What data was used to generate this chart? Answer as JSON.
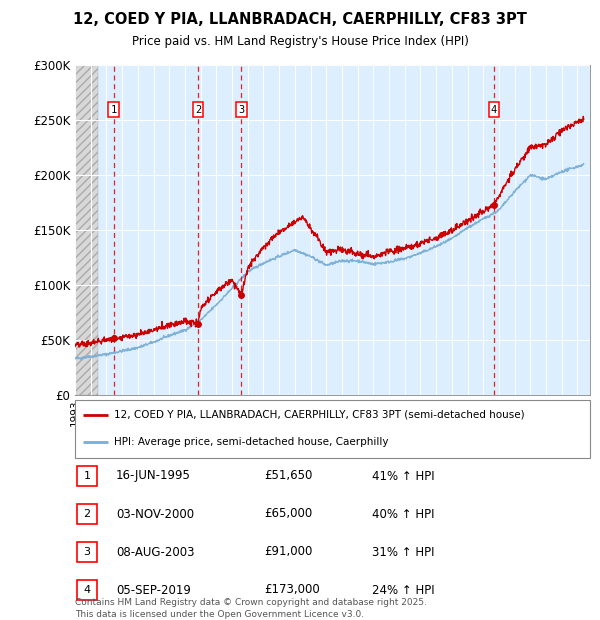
{
  "title": "12, COED Y PIA, LLANBRADACH, CAERPHILLY, CF83 3PT",
  "subtitle": "Price paid vs. HM Land Registry's House Price Index (HPI)",
  "ylim": [
    0,
    300000
  ],
  "yticks": [
    0,
    50000,
    100000,
    150000,
    200000,
    250000,
    300000
  ],
  "ytick_labels": [
    "£0",
    "£50K",
    "£100K",
    "£150K",
    "£200K",
    "£250K",
    "£300K"
  ],
  "xlim_start": 1993.0,
  "xlim_end": 2025.8,
  "hatch_end": 1994.45,
  "transactions": [
    {
      "num": 1,
      "date": "16-JUN-1995",
      "year": 1995.46,
      "price": 51650,
      "pct": "41%",
      "dir": "↑"
    },
    {
      "num": 2,
      "date": "03-NOV-2000",
      "year": 2000.84,
      "price": 65000,
      "pct": "40%",
      "dir": "↑"
    },
    {
      "num": 3,
      "date": "08-AUG-2003",
      "year": 2003.6,
      "price": 91000,
      "pct": "31%",
      "dir": "↑"
    },
    {
      "num": 4,
      "date": "05-SEP-2019",
      "year": 2019.68,
      "price": 173000,
      "pct": "24%",
      "dir": "↑"
    }
  ],
  "hpi_color": "#7aadd4",
  "price_color": "#cc0000",
  "bg_color": "#ddeeff",
  "legend_line1": "12, COED Y PIA, LLANBRADACH, CAERPHILLY, CF83 3PT (semi-detached house)",
  "legend_line2": "HPI: Average price, semi-detached house, Caerphilly",
  "footer1": "Contains HM Land Registry data © Crown copyright and database right 2025.",
  "footer2": "This data is licensed under the Open Government Licence v3.0.",
  "hpi_anchors_x": [
    1993,
    1994,
    1995,
    1996,
    1997,
    1998,
    1999,
    2000,
    2001,
    2002,
    2003,
    2004,
    2005,
    2006,
    2007,
    2008,
    2009,
    2010,
    2011,
    2012,
    2013,
    2014,
    2015,
    2016,
    2017,
    2018,
    2019,
    2020,
    2021,
    2022,
    2023,
    2024,
    2025.5
  ],
  "hpi_anchors_y": [
    33000,
    35000,
    37000,
    40000,
    43000,
    48000,
    54000,
    59000,
    68000,
    82000,
    97000,
    112000,
    120000,
    126000,
    132000,
    126000,
    118000,
    122000,
    122000,
    119000,
    121000,
    124000,
    129000,
    135000,
    142000,
    152000,
    160000,
    168000,
    185000,
    200000,
    196000,
    203000,
    210000
  ],
  "red_anchors_x": [
    1993,
    1994,
    1995.46,
    1997,
    1998,
    1999,
    2000,
    2000.84,
    2001,
    2002,
    2003,
    2003.6,
    2004,
    2005,
    2006,
    2007,
    2007.5,
    2008,
    2009,
    2010,
    2011,
    2012,
    2013,
    2014,
    2015,
    2016,
    2017,
    2018,
    2019,
    2019.68,
    2020,
    2021,
    2022,
    2023,
    2024,
    2025,
    2025.3
  ],
  "red_anchors_y": [
    45000,
    47000,
    51650,
    55000,
    59000,
    64000,
    67000,
    65000,
    78000,
    94000,
    105000,
    91000,
    115000,
    135000,
    148000,
    158000,
    162000,
    152000,
    130000,
    132000,
    128000,
    126000,
    130000,
    133000,
    138000,
    143000,
    150000,
    158000,
    167000,
    173000,
    182000,
    205000,
    225000,
    228000,
    240000,
    248000,
    250000
  ]
}
